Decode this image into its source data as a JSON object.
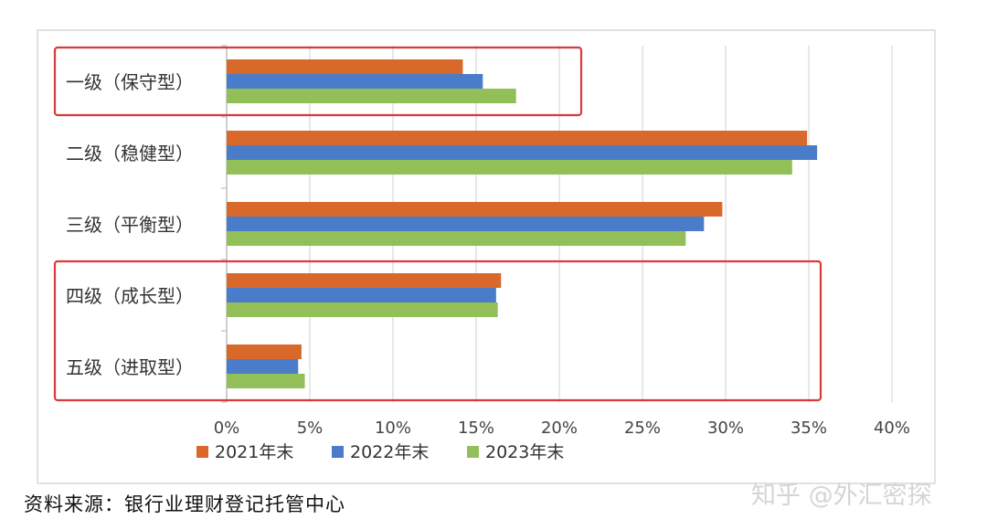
{
  "chart_data": {
    "type": "bar",
    "orientation": "horizontal",
    "categories": [
      "一级（保守型）",
      "二级（稳健型）",
      "三级（平衡型）",
      "四级（成长型）",
      "五级（进取型）"
    ],
    "series": [
      {
        "name": "2021年末",
        "color": "#d9692b",
        "values": [
          14.2,
          34.9,
          29.8,
          16.5,
          4.5
        ]
      },
      {
        "name": "2022年末",
        "color": "#4a7cc9",
        "values": [
          15.4,
          35.5,
          28.7,
          16.2,
          4.3
        ]
      },
      {
        "name": "2023年末",
        "color": "#92bf58",
        "values": [
          17.4,
          34.0,
          27.6,
          16.3,
          4.7
        ]
      }
    ],
    "xlim": [
      0,
      40
    ],
    "ticks": [
      "0%",
      "5%",
      "10%",
      "15%",
      "20%",
      "25%",
      "30%",
      "35%",
      "40%"
    ],
    "grid": true,
    "legend": "bottom",
    "highlight_color": "#d93a3a",
    "highlighted_categories": [
      [
        0
      ],
      [
        3,
        4
      ]
    ]
  },
  "source_text": "资料来源：银行业理财登记托管中心",
  "watermark_text": "知乎 @外汇密探"
}
